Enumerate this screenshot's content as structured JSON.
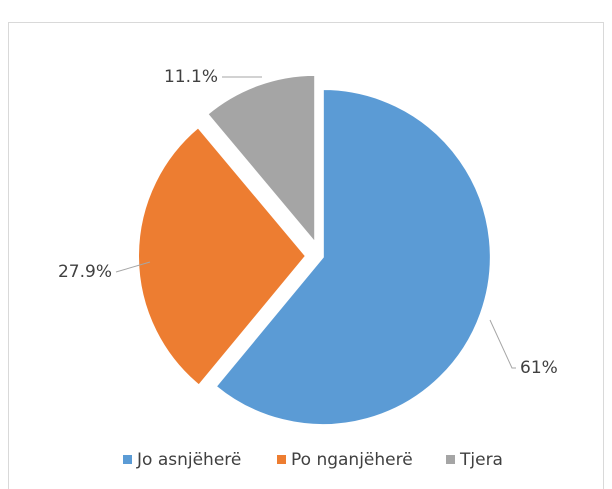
{
  "chart_data": {
    "type": "pie",
    "categories": [
      "Jo asnjëherë",
      "Po nganjëherë",
      "Tjera"
    ],
    "values": [
      61,
      27.9,
      11.1
    ],
    "value_labels": [
      "61%",
      "27.9%",
      "11.1%"
    ],
    "colors": [
      "#5b9bd5",
      "#ed7d31",
      "#a5a5a5"
    ],
    "legend": "bottom"
  }
}
